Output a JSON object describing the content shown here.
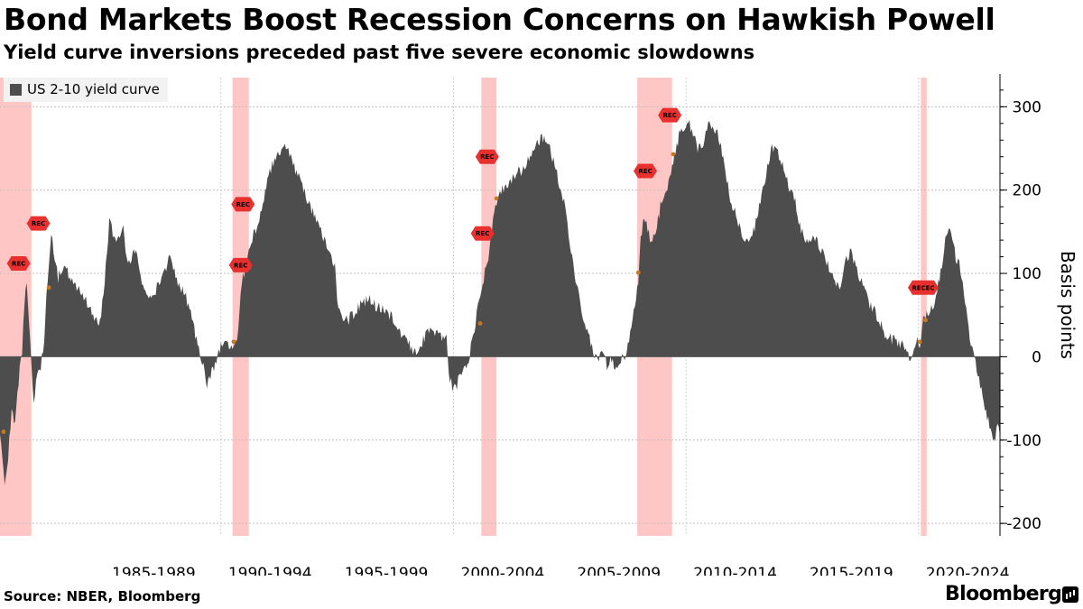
{
  "title": "Bond Markets Boost Recession Concerns on Hawkish Powell",
  "subtitle": "Yield curve inversions preceded past five severe economic slowdowns",
  "source": "Source: NBER, Bloomberg",
  "brand": "Bloomberg",
  "colors": {
    "series": "#4d4d4d",
    "recession_band": "#ffb3b3",
    "marker": "#e8312f",
    "dot": "#c8781e",
    "grid": "#bfbfbf"
  },
  "chart_data": {
    "type": "area",
    "title": "Bond Markets Boost Recession Concerns on Hawkish Powell",
    "subtitle": "Yield curve inversions preceded past five severe economic slowdowns",
    "ylabel": "Basis points",
    "ylim": [
      -215,
      335
    ],
    "xlim": [
      1980.5,
      2023.5
    ],
    "yticks": [
      -200,
      -100,
      0,
      100,
      200,
      300
    ],
    "xtick_labels": [
      "1985-1989",
      "1990-1994",
      "1995-1999",
      "2000-2004",
      "2005-2009",
      "2010-2014",
      "2015-2019",
      "2020-2024"
    ],
    "grid": true,
    "legend_position": "top-left",
    "series": [
      {
        "name": "US 2-10 yield curve",
        "points": [
          [
            1980.5,
            -90
          ],
          [
            1980.7,
            -150
          ],
          [
            1980.85,
            -120
          ],
          [
            1981.0,
            -60
          ],
          [
            1981.15,
            -80
          ],
          [
            1981.3,
            -30
          ],
          [
            1981.45,
            10
          ],
          [
            1981.55,
            60
          ],
          [
            1981.65,
            95
          ],
          [
            1981.75,
            40
          ],
          [
            1981.85,
            -10
          ],
          [
            1981.95,
            -50
          ],
          [
            1982.1,
            -20
          ],
          [
            1982.25,
            -15
          ],
          [
            1982.4,
            20
          ],
          [
            1982.5,
            80
          ],
          [
            1982.6,
            110
          ],
          [
            1982.7,
            145
          ],
          [
            1982.85,
            120
          ],
          [
            1983.0,
            95
          ],
          [
            1983.3,
            110
          ],
          [
            1983.6,
            90
          ],
          [
            1983.9,
            80
          ],
          [
            1984.2,
            70
          ],
          [
            1984.5,
            45
          ],
          [
            1984.8,
            40
          ],
          [
            1985.0,
            90
          ],
          [
            1985.2,
            160
          ],
          [
            1985.5,
            140
          ],
          [
            1985.8,
            155
          ],
          [
            1986.0,
            110
          ],
          [
            1986.3,
            130
          ],
          [
            1986.6,
            90
          ],
          [
            1986.9,
            70
          ],
          [
            1987.2,
            80
          ],
          [
            1987.5,
            95
          ],
          [
            1987.8,
            120
          ],
          [
            1988.1,
            90
          ],
          [
            1988.4,
            80
          ],
          [
            1988.7,
            50
          ],
          [
            1989.0,
            15
          ],
          [
            1989.2,
            -5
          ],
          [
            1989.4,
            -35
          ],
          [
            1989.6,
            -20
          ],
          [
            1989.8,
            -5
          ],
          [
            1990.0,
            15
          ],
          [
            1990.2,
            25
          ],
          [
            1990.4,
            10
          ],
          [
            1990.6,
            15
          ],
          [
            1990.75,
            30
          ],
          [
            1990.9,
            90
          ],
          [
            1991.1,
            110
          ],
          [
            1991.3,
            140
          ],
          [
            1991.6,
            160
          ],
          [
            1991.9,
            200
          ],
          [
            1992.2,
            230
          ],
          [
            1992.5,
            245
          ],
          [
            1992.8,
            255
          ],
          [
            1993.1,
            230
          ],
          [
            1993.4,
            215
          ],
          [
            1993.7,
            190
          ],
          [
            1994.0,
            170
          ],
          [
            1994.3,
            150
          ],
          [
            1994.6,
            130
          ],
          [
            1994.9,
            110
          ],
          [
            1995.0,
            70
          ],
          [
            1995.2,
            50
          ],
          [
            1995.5,
            45
          ],
          [
            1995.8,
            55
          ],
          [
            1996.1,
            65
          ],
          [
            1996.4,
            70
          ],
          [
            1996.7,
            60
          ],
          [
            1997.0,
            55
          ],
          [
            1997.3,
            50
          ],
          [
            1997.6,
            30
          ],
          [
            1997.9,
            20
          ],
          [
            1998.2,
            10
          ],
          [
            1998.5,
            0
          ],
          [
            1998.7,
            20
          ],
          [
            1998.9,
            30
          ],
          [
            1999.2,
            30
          ],
          [
            1999.5,
            25
          ],
          [
            1999.7,
            20
          ],
          [
            1999.8,
            -20
          ],
          [
            2000.0,
            -40
          ],
          [
            2000.2,
            -30
          ],
          [
            2000.4,
            -20
          ],
          [
            2000.6,
            -10
          ],
          [
            2000.8,
            20
          ],
          [
            2001.0,
            50
          ],
          [
            2001.2,
            80
          ],
          [
            2001.5,
            120
          ],
          [
            2001.8,
            185
          ],
          [
            2002.1,
            200
          ],
          [
            2002.4,
            210
          ],
          [
            2002.7,
            220
          ],
          [
            2003.0,
            225
          ],
          [
            2003.3,
            240
          ],
          [
            2003.6,
            255
          ],
          [
            2003.9,
            265
          ],
          [
            2004.2,
            245
          ],
          [
            2004.5,
            215
          ],
          [
            2004.8,
            180
          ],
          [
            2005.0,
            140
          ],
          [
            2005.2,
            100
          ],
          [
            2005.4,
            70
          ],
          [
            2005.6,
            45
          ],
          [
            2005.8,
            25
          ],
          [
            2006.0,
            5
          ],
          [
            2006.2,
            -5
          ],
          [
            2006.4,
            5
          ],
          [
            2006.6,
            -10
          ],
          [
            2006.8,
            -5
          ],
          [
            2007.0,
            -10
          ],
          [
            2007.2,
            -5
          ],
          [
            2007.4,
            5
          ],
          [
            2007.6,
            30
          ],
          [
            2007.8,
            60
          ],
          [
            2007.95,
            90
          ],
          [
            2008.05,
            140
          ],
          [
            2008.2,
            170
          ],
          [
            2008.35,
            150
          ],
          [
            2008.5,
            140
          ],
          [
            2008.7,
            150
          ],
          [
            2008.9,
            180
          ],
          [
            2009.1,
            195
          ],
          [
            2009.3,
            215
          ],
          [
            2009.5,
            240
          ],
          [
            2009.7,
            265
          ],
          [
            2009.9,
            275
          ],
          [
            2010.1,
            280
          ],
          [
            2010.3,
            270
          ],
          [
            2010.5,
            250
          ],
          [
            2010.7,
            250
          ],
          [
            2010.9,
            275
          ],
          [
            2011.1,
            280
          ],
          [
            2011.3,
            270
          ],
          [
            2011.5,
            255
          ],
          [
            2011.7,
            220
          ],
          [
            2011.9,
            190
          ],
          [
            2012.1,
            175
          ],
          [
            2012.3,
            155
          ],
          [
            2012.5,
            140
          ],
          [
            2012.7,
            135
          ],
          [
            2012.9,
            150
          ],
          [
            2013.1,
            175
          ],
          [
            2013.3,
            200
          ],
          [
            2013.5,
            230
          ],
          [
            2013.7,
            250
          ],
          [
            2013.9,
            250
          ],
          [
            2014.1,
            235
          ],
          [
            2014.3,
            215
          ],
          [
            2014.5,
            200
          ],
          [
            2014.7,
            185
          ],
          [
            2014.9,
            155
          ],
          [
            2015.1,
            145
          ],
          [
            2015.3,
            135
          ],
          [
            2015.5,
            140
          ],
          [
            2015.7,
            135
          ],
          [
            2015.9,
            125
          ],
          [
            2016.1,
            110
          ],
          [
            2016.3,
            100
          ],
          [
            2016.5,
            85
          ],
          [
            2016.7,
            85
          ],
          [
            2016.9,
            120
          ],
          [
            2017.1,
            125
          ],
          [
            2017.3,
            105
          ],
          [
            2017.5,
            95
          ],
          [
            2017.7,
            80
          ],
          [
            2017.9,
            60
          ],
          [
            2018.1,
            55
          ],
          [
            2018.3,
            45
          ],
          [
            2018.5,
            30
          ],
          [
            2018.7,
            25
          ],
          [
            2018.9,
            20
          ],
          [
            2019.1,
            18
          ],
          [
            2019.3,
            15
          ],
          [
            2019.5,
            5
          ],
          [
            2019.65,
            -3
          ],
          [
            2019.8,
            15
          ],
          [
            2019.95,
            25
          ],
          [
            2020.05,
            15
          ],
          [
            2020.2,
            45
          ],
          [
            2020.4,
            55
          ],
          [
            2020.6,
            60
          ],
          [
            2020.8,
            80
          ],
          [
            2021.0,
            110
          ],
          [
            2021.15,
            140
          ],
          [
            2021.3,
            155
          ],
          [
            2021.45,
            140
          ],
          [
            2021.6,
            120
          ],
          [
            2021.75,
            110
          ],
          [
            2021.9,
            85
          ],
          [
            2022.05,
            60
          ],
          [
            2022.2,
            20
          ],
          [
            2022.35,
            5
          ],
          [
            2022.5,
            -15
          ],
          [
            2022.65,
            -35
          ],
          [
            2022.8,
            -55
          ],
          [
            2022.95,
            -70
          ],
          [
            2023.1,
            -85
          ],
          [
            2023.25,
            -105
          ],
          [
            2023.4,
            -75
          ],
          [
            2023.5,
            -95
          ]
        ]
      }
    ],
    "recession_periods": [
      [
        1980.5,
        1981.85
      ],
      [
        1990.5,
        1991.2
      ],
      [
        2001.2,
        2001.85
      ],
      [
        2007.9,
        2009.4
      ],
      [
        2020.1,
        2020.35
      ]
    ],
    "annotations": [
      {
        "label": "REC",
        "x": 1981.3,
        "y": 112
      },
      {
        "label": "REC",
        "x": 1982.15,
        "y": 160
      },
      {
        "label": "REC",
        "x": 1990.85,
        "y": 110
      },
      {
        "label": "REC",
        "x": 1990.95,
        "y": 183
      },
      {
        "label": "REC",
        "x": 2001.25,
        "y": 148
      },
      {
        "label": "REC",
        "x": 2001.45,
        "y": 240
      },
      {
        "label": "REC",
        "x": 2008.25,
        "y": 223
      },
      {
        "label": "REC",
        "x": 2009.3,
        "y": 290
      },
      {
        "label": "RECEC",
        "x": 2020.2,
        "y": 83
      }
    ],
    "dots": [
      {
        "x": 1980.65,
        "y": -90
      },
      {
        "x": 1982.6,
        "y": 83
      },
      {
        "x": 1990.55,
        "y": 18
      },
      {
        "x": 1991.2,
        "y": 107
      },
      {
        "x": 2001.15,
        "y": 40
      },
      {
        "x": 2001.85,
        "y": 190
      },
      {
        "x": 2007.95,
        "y": 101
      },
      {
        "x": 2009.45,
        "y": 243
      },
      {
        "x": 2020.05,
        "y": 18
      },
      {
        "x": 2020.3,
        "y": 44
      }
    ]
  }
}
